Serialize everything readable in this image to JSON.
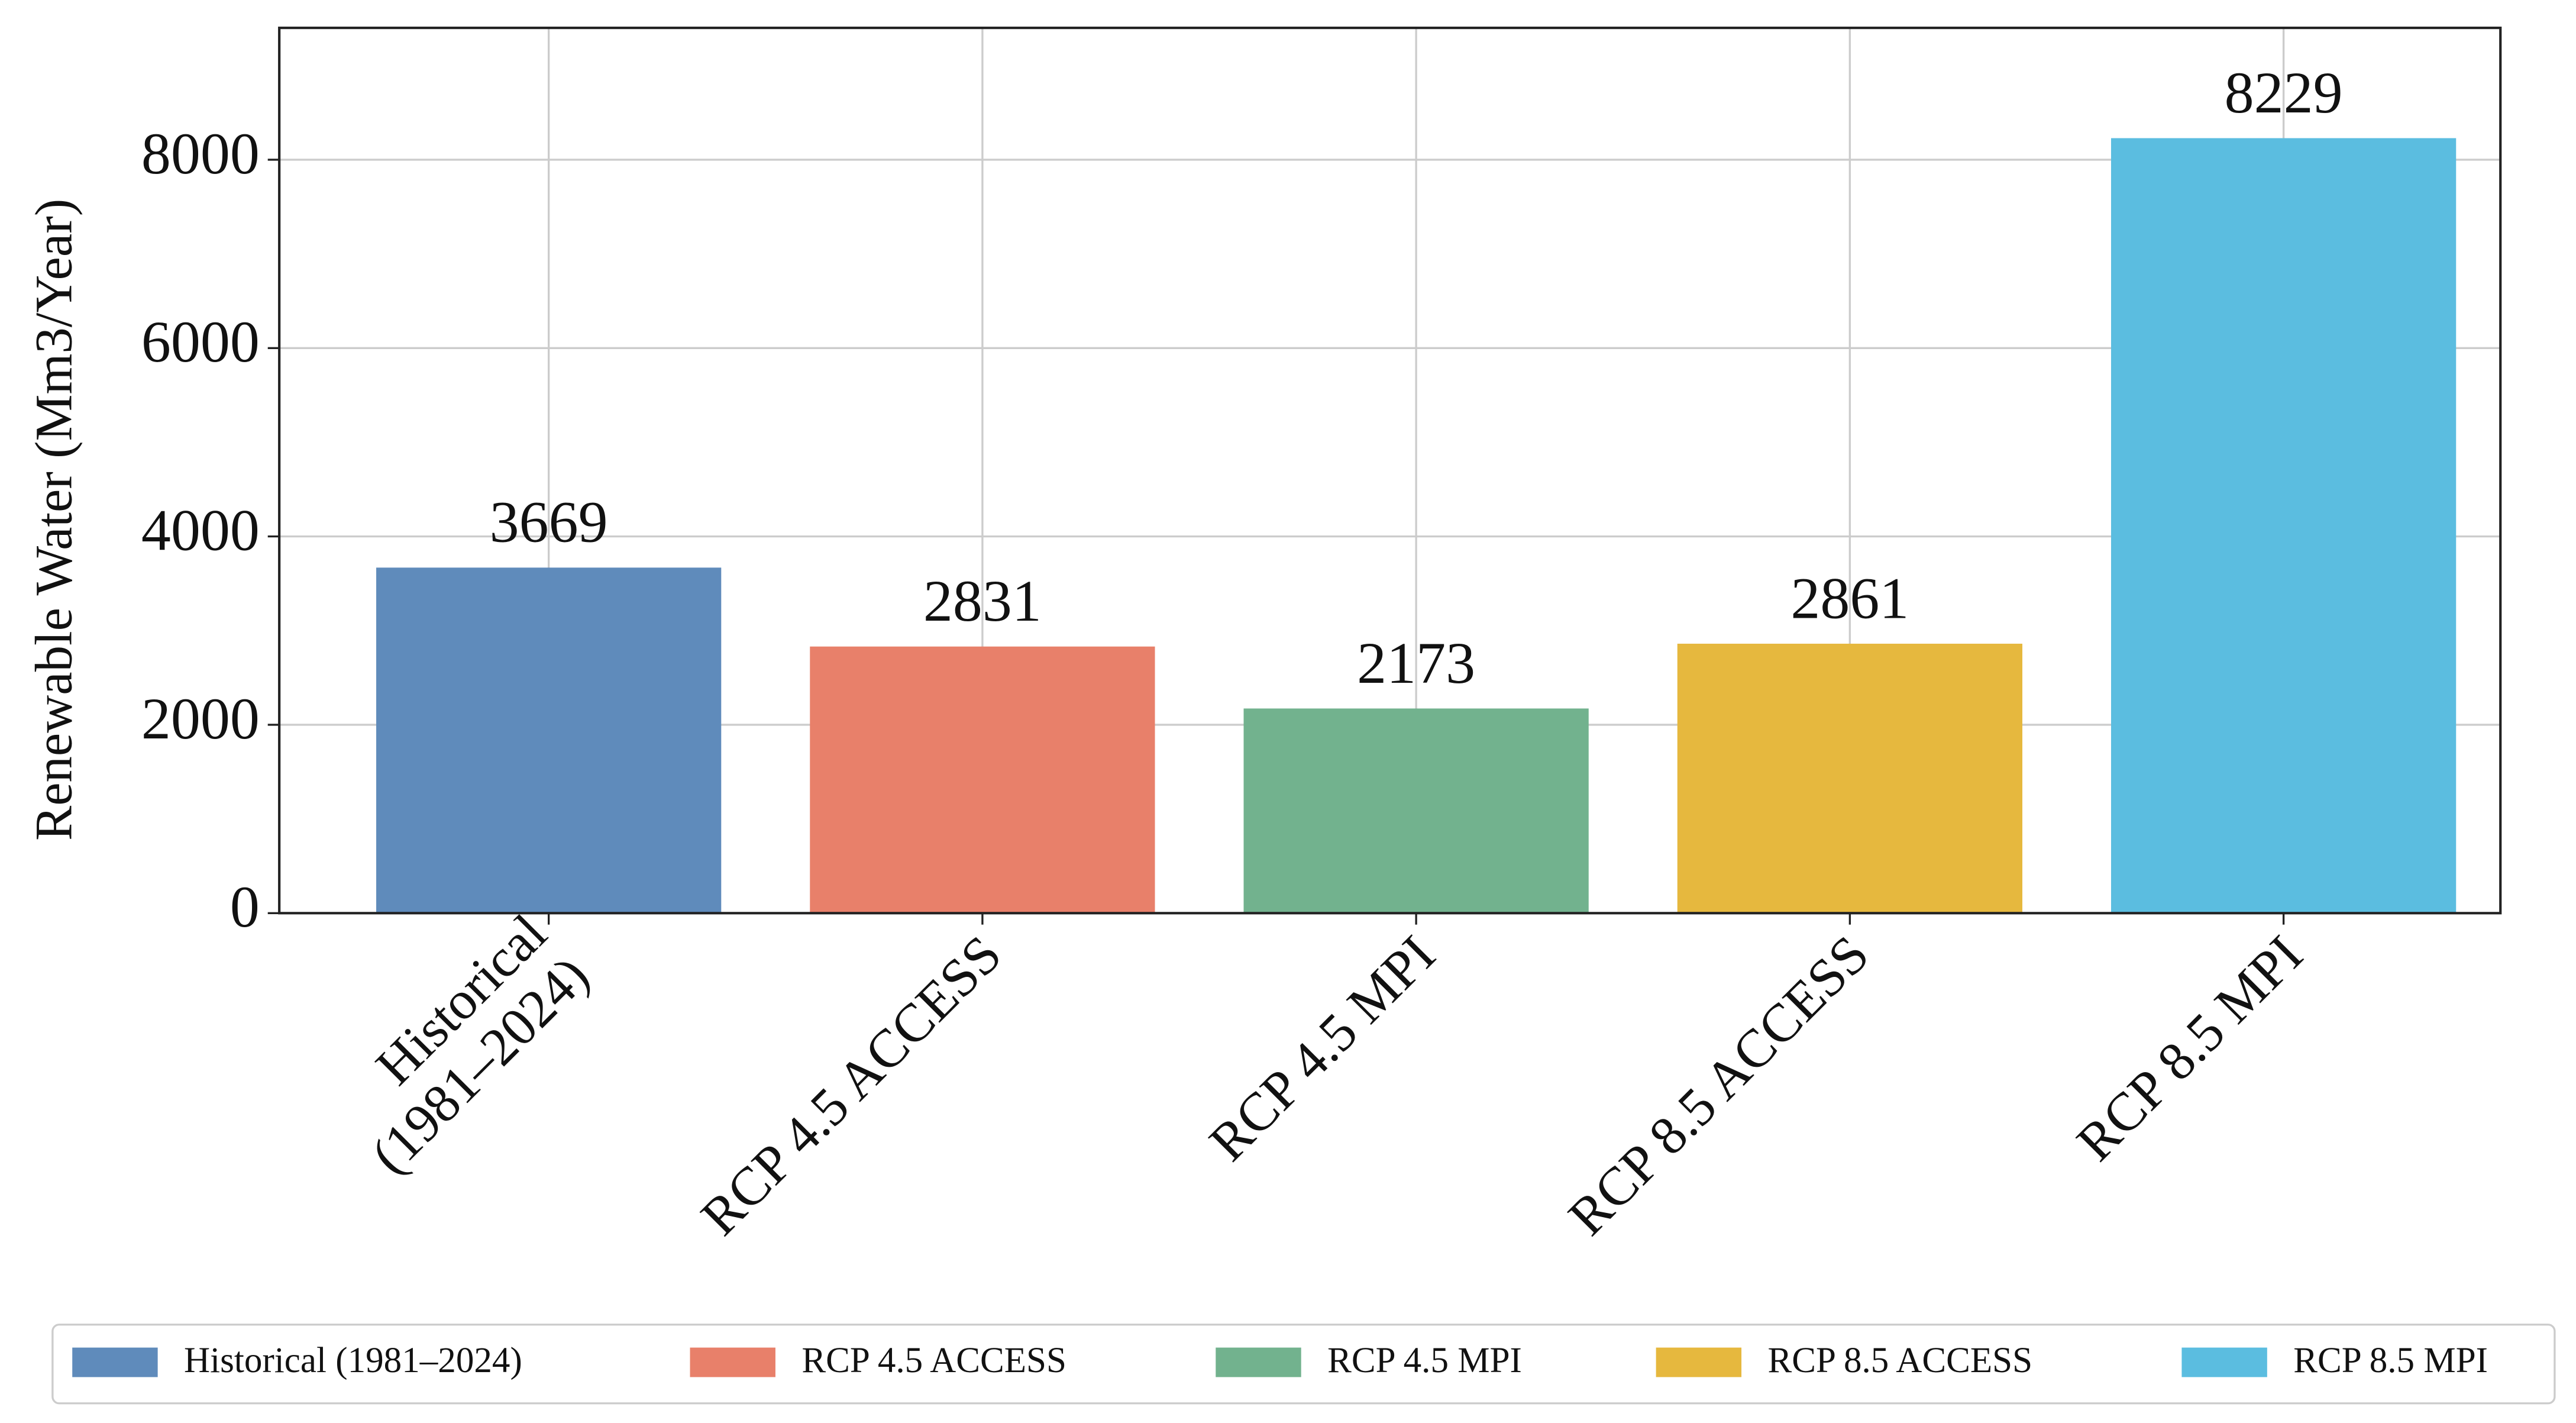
{
  "chart_data": {
    "type": "bar",
    "y_label": "Renewable Water (Mm3/Year)",
    "categories": [
      "Historical\n(1981–2024)",
      "RCP 4.5 ACCESS",
      "RCP 4.5 MPI",
      "RCP 8.5 ACCESS",
      "RCP 8.5 MPI"
    ],
    "values": [
      3669,
      2831,
      2173,
      2861,
      8229
    ],
    "colors": [
      "#5f8bbb",
      "#e8806a",
      "#72b28e",
      "#e6b83e",
      "#5bbde0"
    ],
    "ylim": [
      0,
      9400
    ],
    "yticks": [
      0,
      2000,
      4000,
      6000,
      8000
    ],
    "grid": true,
    "legend": {
      "position": "lower center",
      "labels": [
        "Historical (1981–2024)",
        "RCP 4.5 ACCESS",
        "RCP 4.5 MPI",
        "RCP 8.5 ACCESS",
        "RCP 8.5 MPI"
      ]
    }
  }
}
